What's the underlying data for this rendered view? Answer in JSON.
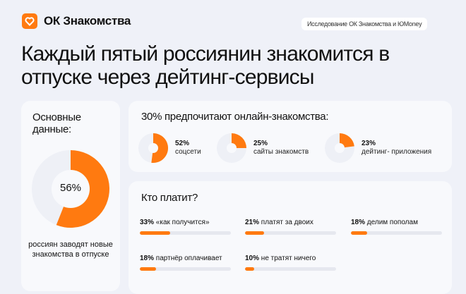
{
  "header": {
    "brand": "ОК Знакомства",
    "source_pill": "Исследование ОК Знакомства и ЮMoney",
    "title": "Каждый пятый россиянин знакомится в отпуске через дейтинг-сервисы"
  },
  "colors": {
    "accent": "#ff7a10",
    "track": "#eef0f6",
    "background": "#eff1f8"
  },
  "main_card": {
    "heading": "Основные данные:",
    "value": 56,
    "value_label": "56%",
    "caption": "россиян заводят новые знакомства в отпуске"
  },
  "online_card": {
    "heading": "30% предпочитают онлайн-знакомства:",
    "items": [
      {
        "value": 52,
        "pct": "52%",
        "label": "соцсети"
      },
      {
        "value": 25,
        "pct": "25%",
        "label": "сайты знакомств"
      },
      {
        "value": 23,
        "pct": "23%",
        "label": "дейтинг- приложения"
      }
    ]
  },
  "pay_card": {
    "heading": "Кто платит?",
    "items": [
      {
        "value": 33,
        "pct": "33%",
        "label": "«как получится»"
      },
      {
        "value": 21,
        "pct": "21%",
        "label": "платят за двоих"
      },
      {
        "value": 18,
        "pct": "18%",
        "label": "делим пополам"
      },
      {
        "value": 18,
        "pct": "18%",
        "label": "партнёр оплачивает"
      },
      {
        "value": 10,
        "pct": "10%",
        "label": "не тратят ничего"
      }
    ]
  },
  "chart_data": [
    {
      "type": "pie",
      "title": "Основные данные:",
      "categories": [
        "заводят новые знакомства в отпуске"
      ],
      "values": [
        56
      ]
    },
    {
      "type": "pie",
      "title": "30% предпочитают онлайн-знакомства:",
      "categories": [
        "соцсети",
        "сайты знакомств",
        "дейтинг- приложения"
      ],
      "values": [
        52,
        25,
        23
      ]
    },
    {
      "type": "bar",
      "title": "Кто платит?",
      "categories": [
        "«как получится»",
        "платят за двоих",
        "делим пополам",
        "партнёр оплачивает",
        "не тратят ничего"
      ],
      "values": [
        33,
        21,
        18,
        18,
        10
      ],
      "ylim": [
        0,
        100
      ]
    }
  ]
}
